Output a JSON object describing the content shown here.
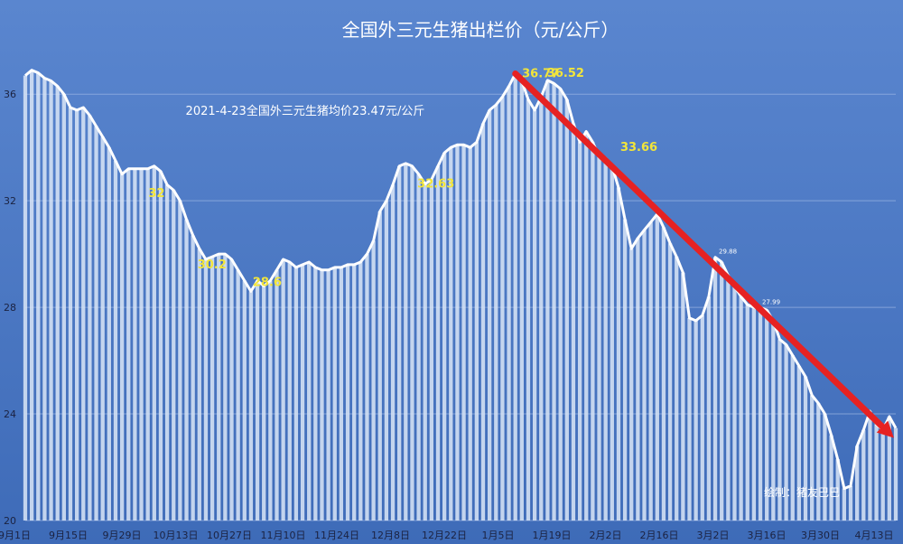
{
  "chart_data": {
    "type": "area",
    "title": "全国外三元生猪出栏价（元/公斤）",
    "xlabel": "",
    "ylabel": "",
    "ylim": [
      20,
      37.5
    ],
    "y_ticks": [
      "36",
      "32",
      "28",
      "24",
      "20"
    ],
    "grid": true,
    "x_tick_labels": [
      "9月1日",
      "9月15日",
      "9月29日",
      "10月13日",
      "10月27日",
      "11月10日",
      "11月24日",
      "12月8日",
      "12月22日",
      "1月5日",
      "1月19日",
      "2月2日",
      "2月16日",
      "3月2日",
      "3月16日",
      "3月30日",
      "4月13日"
    ],
    "series": [
      {
        "values": [
          36.7,
          36.9,
          36.8,
          36.6,
          36.5,
          36.3,
          36.0,
          35.5,
          35.4,
          35.5,
          35.2,
          34.8,
          34.4,
          34.0,
          33.5,
          33.0,
          33.2,
          33.2,
          33.2,
          33.2,
          33.3,
          33.1,
          32.6,
          32.4,
          32.0,
          31.3,
          30.7,
          30.2,
          29.8,
          29.9,
          30.0,
          30.0,
          29.8,
          29.4,
          29.0,
          28.6,
          29.0,
          28.8,
          29.0,
          29.4,
          29.8,
          29.7,
          29.5,
          29.6,
          29.7,
          29.5,
          29.4,
          29.4,
          29.5,
          29.5,
          29.6,
          29.6,
          29.7,
          30.0,
          30.5,
          31.6,
          32.0,
          32.6,
          33.3,
          33.4,
          33.3,
          33.0,
          32.63,
          32.8,
          33.3,
          33.8,
          34.0,
          34.1,
          34.1,
          34.0,
          34.2,
          34.9,
          35.4,
          35.6,
          35.9,
          36.3,
          36.77,
          36.5,
          35.8,
          35.4,
          35.9,
          36.52,
          36.4,
          36.2,
          35.8,
          34.9,
          34.2,
          34.6,
          34.2,
          33.66,
          33.6,
          33.3,
          32.5,
          31.3,
          30.2,
          30.6,
          30.9,
          31.2,
          31.5,
          31.0,
          30.4,
          29.9,
          29.3,
          27.6,
          27.5,
          27.7,
          28.4,
          29.88,
          29.7,
          29.2,
          28.8,
          28.4,
          28.1,
          28.0,
          27.99,
          27.9,
          27.5,
          26.8,
          26.6,
          26.2,
          25.8,
          25.4,
          24.7,
          24.4,
          24.0,
          23.2,
          22.3,
          21.2,
          21.3,
          22.8,
          23.4,
          24.1,
          23.6,
          23.4,
          23.9,
          23.47
        ]
      }
    ],
    "annotations": {
      "price_labels": [
        "28.6",
        "32.63",
        "36.77",
        "36.52",
        "33.66",
        "32",
        "30.2"
      ],
      "small_labels": [
        "29.88",
        "27.99"
      ],
      "note": "2021-4-23全国外三元生猪均价23.47元/公斤",
      "credit": "绘制：猪友巴巴"
    },
    "colors": {
      "background": "#4d79c4",
      "fill_bars": "#dbe6f7",
      "line": "#ffffff",
      "trend_arrow": "#e62222",
      "annotation": "#f2e53a"
    }
  }
}
